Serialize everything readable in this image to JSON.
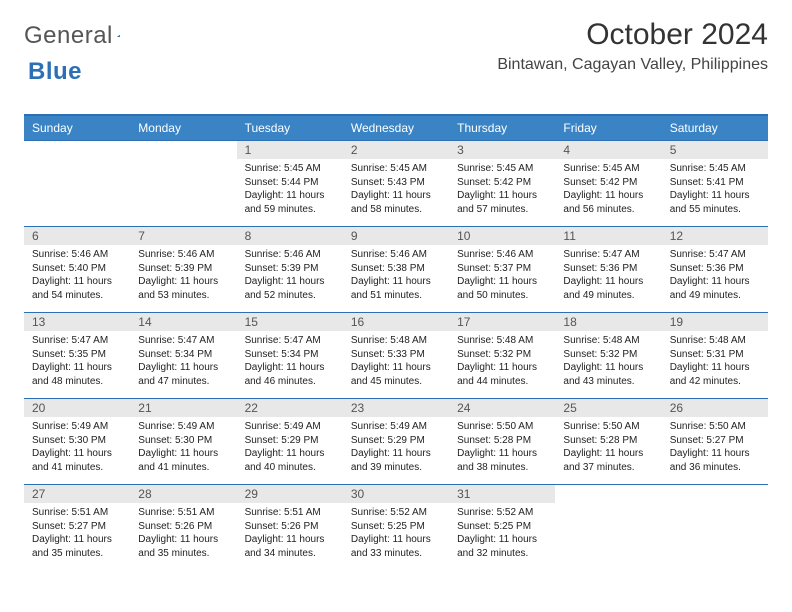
{
  "logo": {
    "word1": "General",
    "word2": "Blue"
  },
  "title": "October 2024",
  "location": "Bintawan, Cagayan Valley, Philippines",
  "colors": {
    "header_bg": "#3a84c5",
    "header_border": "#2d6fb5",
    "daynum_bg": "#e8e8e8",
    "text": "#222222",
    "logo_gray": "#555555",
    "logo_blue": "#2d6fb5"
  },
  "days_of_week": [
    "Sunday",
    "Monday",
    "Tuesday",
    "Wednesday",
    "Thursday",
    "Friday",
    "Saturday"
  ],
  "weeks": [
    [
      {
        "empty": true
      },
      {
        "empty": true
      },
      {
        "n": "1",
        "sunrise": "Sunrise: 5:45 AM",
        "sunset": "Sunset: 5:44 PM",
        "daylight": "Daylight: 11 hours and 59 minutes."
      },
      {
        "n": "2",
        "sunrise": "Sunrise: 5:45 AM",
        "sunset": "Sunset: 5:43 PM",
        "daylight": "Daylight: 11 hours and 58 minutes."
      },
      {
        "n": "3",
        "sunrise": "Sunrise: 5:45 AM",
        "sunset": "Sunset: 5:42 PM",
        "daylight": "Daylight: 11 hours and 57 minutes."
      },
      {
        "n": "4",
        "sunrise": "Sunrise: 5:45 AM",
        "sunset": "Sunset: 5:42 PM",
        "daylight": "Daylight: 11 hours and 56 minutes."
      },
      {
        "n": "5",
        "sunrise": "Sunrise: 5:45 AM",
        "sunset": "Sunset: 5:41 PM",
        "daylight": "Daylight: 11 hours and 55 minutes."
      }
    ],
    [
      {
        "n": "6",
        "sunrise": "Sunrise: 5:46 AM",
        "sunset": "Sunset: 5:40 PM",
        "daylight": "Daylight: 11 hours and 54 minutes."
      },
      {
        "n": "7",
        "sunrise": "Sunrise: 5:46 AM",
        "sunset": "Sunset: 5:39 PM",
        "daylight": "Daylight: 11 hours and 53 minutes."
      },
      {
        "n": "8",
        "sunrise": "Sunrise: 5:46 AM",
        "sunset": "Sunset: 5:39 PM",
        "daylight": "Daylight: 11 hours and 52 minutes."
      },
      {
        "n": "9",
        "sunrise": "Sunrise: 5:46 AM",
        "sunset": "Sunset: 5:38 PM",
        "daylight": "Daylight: 11 hours and 51 minutes."
      },
      {
        "n": "10",
        "sunrise": "Sunrise: 5:46 AM",
        "sunset": "Sunset: 5:37 PM",
        "daylight": "Daylight: 11 hours and 50 minutes."
      },
      {
        "n": "11",
        "sunrise": "Sunrise: 5:47 AM",
        "sunset": "Sunset: 5:36 PM",
        "daylight": "Daylight: 11 hours and 49 minutes."
      },
      {
        "n": "12",
        "sunrise": "Sunrise: 5:47 AM",
        "sunset": "Sunset: 5:36 PM",
        "daylight": "Daylight: 11 hours and 49 minutes."
      }
    ],
    [
      {
        "n": "13",
        "sunrise": "Sunrise: 5:47 AM",
        "sunset": "Sunset: 5:35 PM",
        "daylight": "Daylight: 11 hours and 48 minutes."
      },
      {
        "n": "14",
        "sunrise": "Sunrise: 5:47 AM",
        "sunset": "Sunset: 5:34 PM",
        "daylight": "Daylight: 11 hours and 47 minutes."
      },
      {
        "n": "15",
        "sunrise": "Sunrise: 5:47 AM",
        "sunset": "Sunset: 5:34 PM",
        "daylight": "Daylight: 11 hours and 46 minutes."
      },
      {
        "n": "16",
        "sunrise": "Sunrise: 5:48 AM",
        "sunset": "Sunset: 5:33 PM",
        "daylight": "Daylight: 11 hours and 45 minutes."
      },
      {
        "n": "17",
        "sunrise": "Sunrise: 5:48 AM",
        "sunset": "Sunset: 5:32 PM",
        "daylight": "Daylight: 11 hours and 44 minutes."
      },
      {
        "n": "18",
        "sunrise": "Sunrise: 5:48 AM",
        "sunset": "Sunset: 5:32 PM",
        "daylight": "Daylight: 11 hours and 43 minutes."
      },
      {
        "n": "19",
        "sunrise": "Sunrise: 5:48 AM",
        "sunset": "Sunset: 5:31 PM",
        "daylight": "Daylight: 11 hours and 42 minutes."
      }
    ],
    [
      {
        "n": "20",
        "sunrise": "Sunrise: 5:49 AM",
        "sunset": "Sunset: 5:30 PM",
        "daylight": "Daylight: 11 hours and 41 minutes."
      },
      {
        "n": "21",
        "sunrise": "Sunrise: 5:49 AM",
        "sunset": "Sunset: 5:30 PM",
        "daylight": "Daylight: 11 hours and 41 minutes."
      },
      {
        "n": "22",
        "sunrise": "Sunrise: 5:49 AM",
        "sunset": "Sunset: 5:29 PM",
        "daylight": "Daylight: 11 hours and 40 minutes."
      },
      {
        "n": "23",
        "sunrise": "Sunrise: 5:49 AM",
        "sunset": "Sunset: 5:29 PM",
        "daylight": "Daylight: 11 hours and 39 minutes."
      },
      {
        "n": "24",
        "sunrise": "Sunrise: 5:50 AM",
        "sunset": "Sunset: 5:28 PM",
        "daylight": "Daylight: 11 hours and 38 minutes."
      },
      {
        "n": "25",
        "sunrise": "Sunrise: 5:50 AM",
        "sunset": "Sunset: 5:28 PM",
        "daylight": "Daylight: 11 hours and 37 minutes."
      },
      {
        "n": "26",
        "sunrise": "Sunrise: 5:50 AM",
        "sunset": "Sunset: 5:27 PM",
        "daylight": "Daylight: 11 hours and 36 minutes."
      }
    ],
    [
      {
        "n": "27",
        "sunrise": "Sunrise: 5:51 AM",
        "sunset": "Sunset: 5:27 PM",
        "daylight": "Daylight: 11 hours and 35 minutes."
      },
      {
        "n": "28",
        "sunrise": "Sunrise: 5:51 AM",
        "sunset": "Sunset: 5:26 PM",
        "daylight": "Daylight: 11 hours and 35 minutes."
      },
      {
        "n": "29",
        "sunrise": "Sunrise: 5:51 AM",
        "sunset": "Sunset: 5:26 PM",
        "daylight": "Daylight: 11 hours and 34 minutes."
      },
      {
        "n": "30",
        "sunrise": "Sunrise: 5:52 AM",
        "sunset": "Sunset: 5:25 PM",
        "daylight": "Daylight: 11 hours and 33 minutes."
      },
      {
        "n": "31",
        "sunrise": "Sunrise: 5:52 AM",
        "sunset": "Sunset: 5:25 PM",
        "daylight": "Daylight: 11 hours and 32 minutes."
      },
      {
        "empty": true
      },
      {
        "empty": true
      }
    ]
  ]
}
